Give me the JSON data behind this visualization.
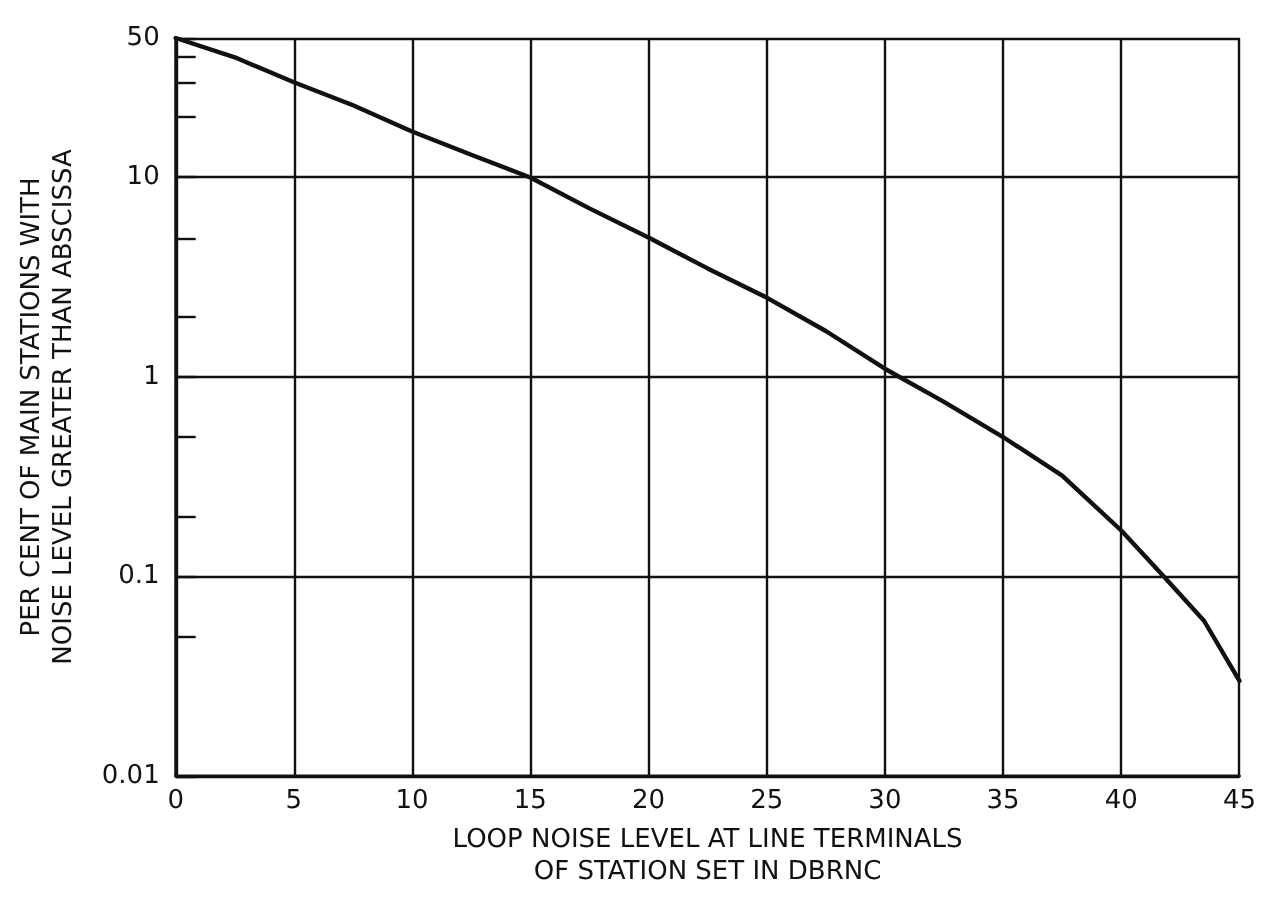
{
  "chart_data": {
    "type": "line",
    "xlabel": "LOOP NOISE LEVEL AT LINE TERMINALS\nOF STATION SET IN DBRNC",
    "ylabel": "PER CENT OF MAIN STATIONS WITH\nNOISE LEVEL GREATER THAN ABSCISSA",
    "x": [
      0,
      2.5,
      5,
      7.5,
      10,
      12.5,
      15,
      17.5,
      20,
      22.5,
      25,
      27.5,
      30,
      32.5,
      35,
      37.5,
      40,
      41.8,
      43.5,
      45
    ],
    "series": [
      {
        "color": "#111111",
        "values": [
          50,
          40,
          30,
          23,
          17,
          13,
          10,
          7,
          5,
          3.5,
          2.5,
          1.7,
          1.1,
          0.75,
          0.5,
          0.32,
          0.17,
          0.1,
          0.06,
          0.03
        ]
      }
    ],
    "log": "y",
    "xlim": [
      0,
      45
    ],
    "xticks": [
      0,
      5,
      10,
      15,
      20,
      25,
      30,
      35,
      40,
      45
    ],
    "ylim": [
      0.01,
      50
    ],
    "yticks": [
      0.01,
      {
        "value": 0.05,
        "label": null
      },
      0.1,
      {
        "value": 0.2,
        "label": null
      },
      {
        "value": 0.5,
        "label": null
      },
      1,
      {
        "value": 2,
        "label": null
      },
      {
        "value": 5,
        "label": null
      },
      10,
      {
        "value": 20,
        "label": null
      },
      {
        "value": 30,
        "label": null
      },
      {
        "value": 40,
        "label": null
      },
      50
    ],
    "grid": true,
    "marker": "none",
    "line_style": "solid"
  }
}
